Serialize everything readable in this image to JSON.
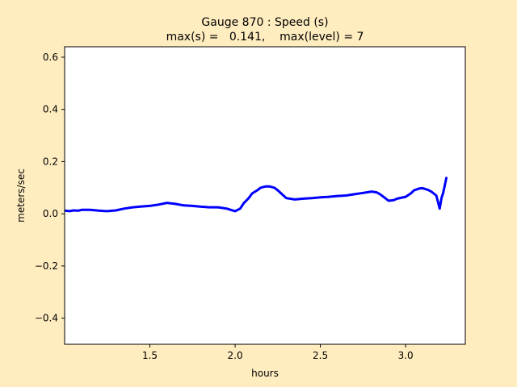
{
  "chart_data": {
    "type": "line",
    "title_line1": "Gauge 870 : Speed (s)",
    "title_line2": "max(s) =   0.141,    max(level) = 7",
    "xlabel": "hours",
    "ylabel": "meters/sec",
    "xlim": [
      1.0,
      3.35
    ],
    "ylim": [
      -0.5,
      0.64
    ],
    "xticks": [
      1.5,
      2.0,
      2.5,
      3.0
    ],
    "xtick_labels": [
      "1.5",
      "2.0",
      "2.5",
      "3.0"
    ],
    "yticks": [
      -0.4,
      -0.2,
      0.0,
      0.2,
      0.4,
      0.6
    ],
    "ytick_labels": [
      "−0.4",
      "−0.2",
      "0.0",
      "0.2",
      "0.4",
      "0.6"
    ],
    "grid": false,
    "colors": {
      "series": "#0000ff",
      "background": "#ffedc0",
      "axes_bg": "#ffffff"
    },
    "series": [
      {
        "x": [
          1.0,
          1.03,
          1.05,
          1.08,
          1.1,
          1.15,
          1.2,
          1.25,
          1.3,
          1.35,
          1.4,
          1.45,
          1.5,
          1.55,
          1.6,
          1.65,
          1.7,
          1.75,
          1.8,
          1.85,
          1.9,
          1.95,
          2.0,
          2.03,
          2.05,
          2.08,
          2.1,
          2.13,
          2.15,
          2.18,
          2.2,
          2.23,
          2.25,
          2.28,
          2.3,
          2.35,
          2.4,
          2.45,
          2.5,
          2.55,
          2.6,
          2.65,
          2.7,
          2.75,
          2.8,
          2.83,
          2.85,
          2.88,
          2.9,
          2.93,
          2.95,
          3.0,
          3.03,
          3.05,
          3.08,
          3.1,
          3.13,
          3.15,
          3.18,
          3.19,
          3.2,
          3.21,
          3.22,
          3.23,
          3.24
        ],
        "y": [
          0.012,
          0.01,
          0.013,
          0.012,
          0.015,
          0.015,
          0.012,
          0.01,
          0.013,
          0.02,
          0.025,
          0.028,
          0.03,
          0.035,
          0.042,
          0.038,
          0.032,
          0.03,
          0.027,
          0.025,
          0.025,
          0.02,
          0.01,
          0.02,
          0.04,
          0.06,
          0.078,
          0.09,
          0.1,
          0.105,
          0.105,
          0.1,
          0.09,
          0.072,
          0.06,
          0.055,
          0.058,
          0.06,
          0.063,
          0.065,
          0.068,
          0.07,
          0.075,
          0.08,
          0.085,
          0.082,
          0.075,
          0.06,
          0.05,
          0.052,
          0.058,
          0.065,
          0.078,
          0.09,
          0.097,
          0.098,
          0.092,
          0.085,
          0.07,
          0.045,
          0.02,
          0.06,
          0.08,
          0.11,
          0.141
        ]
      }
    ]
  }
}
